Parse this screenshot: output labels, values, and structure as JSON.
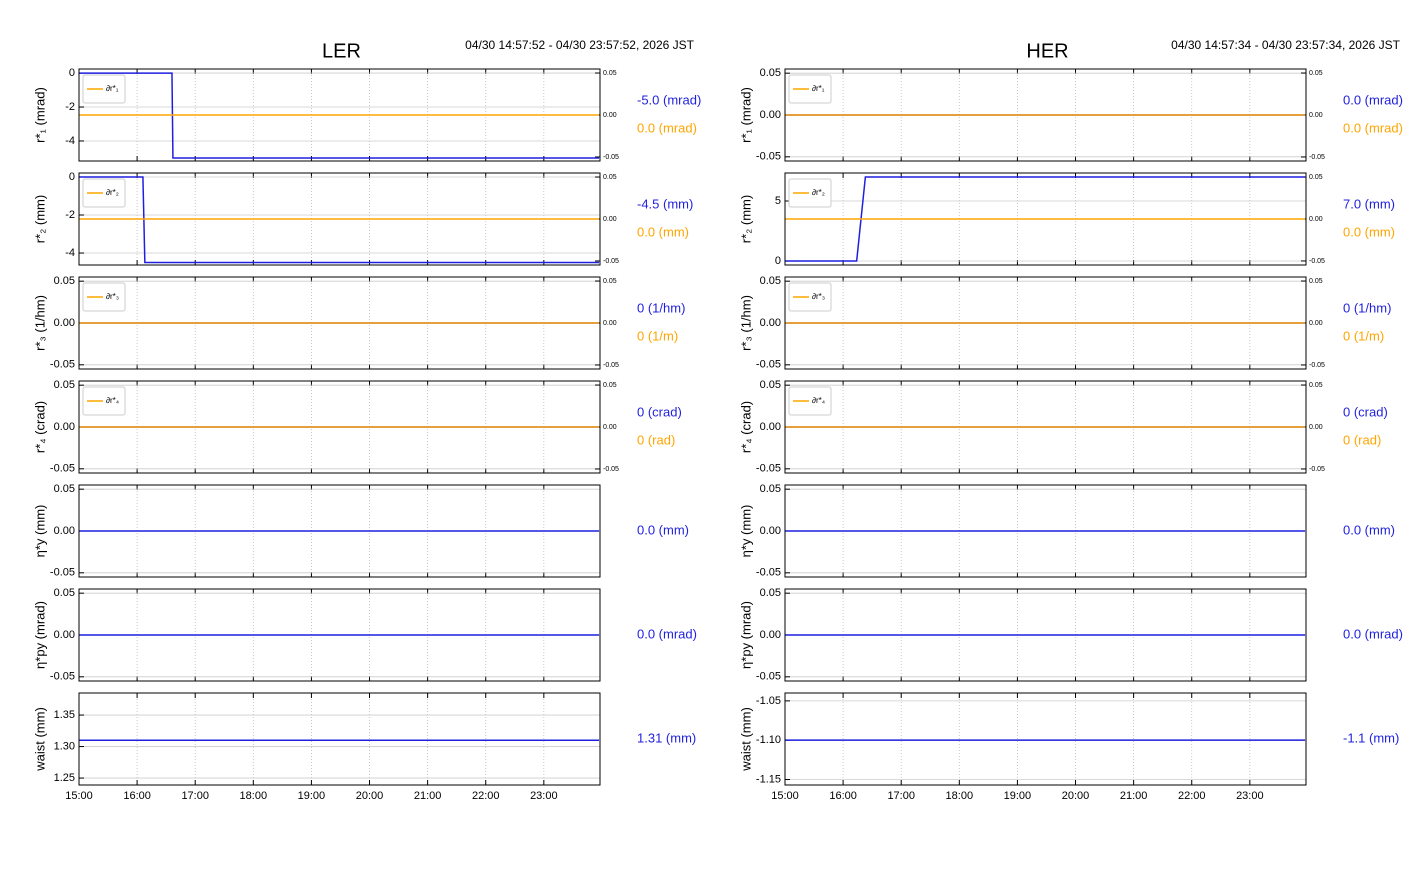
{
  "chart_data": [
    {
      "type": "line",
      "title": "LER",
      "subtitle": "04/30 14:57:52 - 04/30 23:57:52, 2026 JST",
      "xlim": [
        "15:00",
        "23:58"
      ],
      "xticks": [
        "15:00",
        "16:00",
        "17:00",
        "18:00",
        "19:00",
        "20:00",
        "21:00",
        "22:00",
        "23:00"
      ],
      "grid": true,
      "panels": [
        {
          "ylabel": "r*₁ (mrad)",
          "ylim": [
            -5.18,
            0.24
          ],
          "yticks": [
            0,
            -2,
            -4
          ],
          "y2lim": [
            -0.0548,
            0.0548
          ],
          "y2ticks": [
            0.05,
            {
              "value": 0,
              "label": "0.00"
            },
            -0.05
          ],
          "series": [
            {
              "color": "#1f1fe0",
              "x": [
                "15:00",
                "16:36",
                "16:37",
                "23:57"
              ],
              "values": [
                0,
                0,
                -5,
                -5
              ],
              "readout": "-5.0 (mrad)"
            },
            {
              "name": "∂r*₁",
              "color": "#ffa500",
              "axis": "y2",
              "x": [
                "15:00",
                "23:57"
              ],
              "values": [
                0,
                0
              ],
              "readout": "0.0 (mrad)"
            }
          ]
        },
        {
          "ylabel": "r*₂ (mm)",
          "ylim": [
            -4.63,
            0.21
          ],
          "yticks": [
            0,
            -2,
            -4
          ],
          "y2lim": [
            -0.0548,
            0.0548
          ],
          "y2ticks": [
            0.05,
            {
              "value": 0,
              "label": "0.00"
            },
            -0.05
          ],
          "series": [
            {
              "color": "#1f1fe0",
              "x": [
                "15:00",
                "16:06",
                "16:08",
                "23:57"
              ],
              "values": [
                0,
                0,
                -4.5,
                -4.5
              ],
              "readout": "-4.5 (mm)"
            },
            {
              "name": "∂r*₂",
              "color": "#ffa500",
              "axis": "y2",
              "x": [
                "15:00",
                "23:57"
              ],
              "values": [
                0,
                0
              ],
              "readout": "0.0 (mm)"
            }
          ]
        },
        {
          "ylabel": "r*₃ (1/hm)",
          "ylim": [
            -0.055,
            0.055
          ],
          "yticks": [
            0.05,
            {
              "value": 0,
              "label": "0.00"
            },
            -0.05
          ],
          "y2lim": [
            -0.0548,
            0.0548
          ],
          "y2ticks": [
            0.05,
            {
              "value": 0,
              "label": "0.00"
            },
            -0.05
          ],
          "series": [
            {
              "color": "#1f1fe0",
              "x": [
                "15:00",
                "23:57"
              ],
              "values": [
                0,
                0
              ],
              "readout": "0 (1/hm)"
            },
            {
              "name": "∂r*₃",
              "color": "#ffa500",
              "axis": "y2",
              "x": [
                "15:00",
                "23:57"
              ],
              "values": [
                0,
                0
              ],
              "readout": "0 (1/m)"
            }
          ]
        },
        {
          "ylabel": "r*₄ (crad)",
          "ylim": [
            -0.055,
            0.055
          ],
          "yticks": [
            0.05,
            {
              "value": 0,
              "label": "0.00"
            },
            -0.05
          ],
          "y2lim": [
            -0.0548,
            0.0548
          ],
          "y2ticks": [
            0.05,
            {
              "value": 0,
              "label": "0.00"
            },
            -0.05
          ],
          "series": [
            {
              "color": "#1f1fe0",
              "x": [
                "15:00",
                "23:57"
              ],
              "values": [
                0,
                0
              ],
              "readout": "0 (crad)"
            },
            {
              "name": "∂r*₄",
              "color": "#ffa500",
              "axis": "y2",
              "x": [
                "15:00",
                "23:57"
              ],
              "values": [
                0,
                0
              ],
              "readout": "0 (rad)"
            }
          ]
        },
        {
          "ylabel": "η*y (mm)",
          "ylim": [
            -0.055,
            0.055
          ],
          "yticks": [
            0.05,
            {
              "value": 0,
              "label": "0.00"
            },
            -0.05
          ],
          "series": [
            {
              "color": "#1f1fe0",
              "x": [
                "15:00",
                "23:57"
              ],
              "values": [
                0,
                0
              ],
              "readout": "0.0 (mm)"
            }
          ]
        },
        {
          "ylabel": "η*py (mrad)",
          "ylim": [
            -0.055,
            0.055
          ],
          "yticks": [
            0.05,
            {
              "value": 0,
              "label": "0.00"
            },
            -0.05
          ],
          "series": [
            {
              "color": "#1f1fe0",
              "x": [
                "15:00",
                "23:57"
              ],
              "values": [
                0,
                0
              ],
              "readout": "0.0 (mrad)"
            }
          ]
        },
        {
          "ylabel": "waist (mm)",
          "ylim": [
            1.239,
            1.385
          ],
          "yticks": [
            1.35,
            {
              "value": 1.3,
              "label": "1.30"
            },
            1.25
          ],
          "series": [
            {
              "color": "#1f1fe0",
              "x": [
                "15:00",
                "23:57"
              ],
              "values": [
                1.31,
                1.31
              ],
              "readout": "1.31 (mm)"
            }
          ]
        }
      ]
    },
    {
      "type": "line",
      "title": "HER",
      "subtitle": "04/30 14:57:34 - 04/30 23:57:34, 2026 JST",
      "xlim": [
        "15:00",
        "23:58"
      ],
      "xticks": [
        "15:00",
        "16:00",
        "17:00",
        "18:00",
        "19:00",
        "20:00",
        "21:00",
        "22:00",
        "23:00"
      ],
      "grid": true,
      "panels": [
        {
          "ylabel": "r*₁ (mrad)",
          "ylim": [
            -0.055,
            0.055
          ],
          "yticks": [
            0.05,
            {
              "value": 0,
              "label": "0.00"
            },
            -0.05
          ],
          "y2lim": [
            -0.0548,
            0.0548
          ],
          "y2ticks": [
            0.05,
            {
              "value": 0,
              "label": "0.00"
            },
            -0.05
          ],
          "series": [
            {
              "color": "#1f1fe0",
              "x": [
                "15:00",
                "23:57"
              ],
              "values": [
                0,
                0
              ],
              "readout": "0.0 (mrad)"
            },
            {
              "name": "∂r*₁",
              "color": "#ffa500",
              "axis": "y2",
              "x": [
                "15:00",
                "23:57"
              ],
              "values": [
                0,
                0
              ],
              "readout": "0.0 (mrad)"
            }
          ]
        },
        {
          "ylabel": "r*₂ (mm)",
          "ylim": [
            -0.33,
            7.33
          ],
          "yticks": [
            5,
            0
          ],
          "y2lim": [
            -0.0548,
            0.0548
          ],
          "y2ticks": [
            0.05,
            {
              "value": 0,
              "label": "0.00"
            },
            -0.05
          ],
          "series": [
            {
              "color": "#1f1fe0",
              "x": [
                "15:00",
                "16:14",
                "16:23",
                "23:57"
              ],
              "values": [
                0,
                0,
                7,
                7
              ],
              "readout": "7.0 (mm)"
            },
            {
              "name": "∂r*₂",
              "color": "#ffa500",
              "axis": "y2",
              "x": [
                "15:00",
                "23:57"
              ],
              "values": [
                0,
                0
              ],
              "readout": "0.0 (mm)"
            }
          ]
        },
        {
          "ylabel": "r*₃ (1/hm)",
          "ylim": [
            -0.055,
            0.055
          ],
          "yticks": [
            0.05,
            {
              "value": 0,
              "label": "0.00"
            },
            -0.05
          ],
          "y2lim": [
            -0.0548,
            0.0548
          ],
          "y2ticks": [
            0.05,
            {
              "value": 0,
              "label": "0.00"
            },
            -0.05
          ],
          "series": [
            {
              "color": "#1f1fe0",
              "x": [
                "15:00",
                "23:57"
              ],
              "values": [
                0,
                0
              ],
              "readout": "0 (1/hm)"
            },
            {
              "name": "∂r*₃",
              "color": "#ffa500",
              "axis": "y2",
              "x": [
                "15:00",
                "23:57"
              ],
              "values": [
                0,
                0
              ],
              "readout": "0 (1/m)"
            }
          ]
        },
        {
          "ylabel": "r*₄ (crad)",
          "ylim": [
            -0.055,
            0.055
          ],
          "yticks": [
            0.05,
            {
              "value": 0,
              "label": "0.00"
            },
            -0.05
          ],
          "y2lim": [
            -0.0548,
            0.0548
          ],
          "y2ticks": [
            0.05,
            {
              "value": 0,
              "label": "0.00"
            },
            -0.05
          ],
          "series": [
            {
              "color": "#1f1fe0",
              "x": [
                "15:00",
                "23:57"
              ],
              "values": [
                0,
                0
              ],
              "readout": "0 (crad)"
            },
            {
              "name": "∂r*₄",
              "color": "#ffa500",
              "axis": "y2",
              "x": [
                "15:00",
                "23:57"
              ],
              "values": [
                0,
                0
              ],
              "readout": "0 (rad)"
            }
          ]
        },
        {
          "ylabel": "η*y (mm)",
          "ylim": [
            -0.055,
            0.055
          ],
          "yticks": [
            0.05,
            {
              "value": 0,
              "label": "0.00"
            },
            -0.05
          ],
          "series": [
            {
              "color": "#1f1fe0",
              "x": [
                "15:00",
                "23:57"
              ],
              "values": [
                0,
                0
              ],
              "readout": "0.0 (mm)"
            }
          ]
        },
        {
          "ylabel": "η*py (mrad)",
          "ylim": [
            -0.055,
            0.055
          ],
          "yticks": [
            0.05,
            {
              "value": 0,
              "label": "0.00"
            },
            -0.05
          ],
          "series": [
            {
              "color": "#1f1fe0",
              "x": [
                "15:00",
                "23:57"
              ],
              "values": [
                0,
                0
              ],
              "readout": "0.0 (mrad)"
            }
          ]
        },
        {
          "ylabel": "waist (mm)",
          "ylim": [
            -1.157,
            -1.04
          ],
          "yticks": [
            {
              "value": -1.05,
              "label": "-1.05"
            },
            {
              "value": -1.1,
              "label": "-1.10"
            },
            -1.15
          ],
          "series": [
            {
              "color": "#1f1fe0",
              "x": [
                "15:00",
                "23:57"
              ],
              "values": [
                -1.1,
                -1.1
              ],
              "readout": "-1.1 (mm)"
            }
          ]
        }
      ]
    }
  ]
}
